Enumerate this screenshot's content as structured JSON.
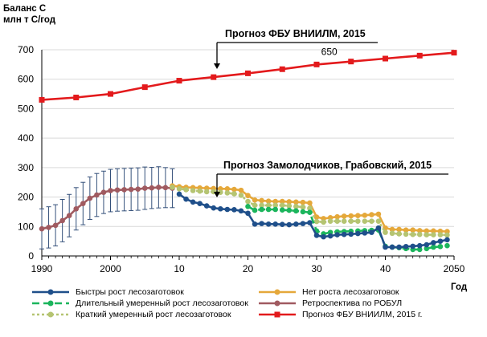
{
  "chart_data": {
    "type": "line",
    "ylabel_line1": "Баланс С",
    "ylabel_line2": "млн т С/год",
    "xlabel": "Год",
    "xlim": [
      1990,
      2050
    ],
    "ylim": [
      0,
      700
    ],
    "x_ticks": [
      "1990",
      "2000",
      "10",
      "20",
      "30",
      "40",
      "2050"
    ],
    "y_ticks": [
      "0",
      "100",
      "200",
      "300",
      "400",
      "500",
      "600",
      "700"
    ],
    "grid": "horizontal",
    "legend_position": "bottom",
    "annotations": [
      {
        "text": "Прогноз ФБУ ВНИИЛМ, 2015",
        "target": [
          2015,
          607
        ]
      },
      {
        "text": "Прогноз Замолодчиков, Грабовский, 2015",
        "target": [
          2015,
          118
        ]
      }
    ],
    "data_label": {
      "text": "650",
      "x": 2033,
      "y": 650
    },
    "series": [
      {
        "name": "Прогноз ФБУ ВНИИЛМ, 2015 г.",
        "color": "#e31a1c",
        "style": "solid",
        "marker": "square",
        "x": [
          1990,
          1995,
          2000,
          2005,
          2010,
          2015,
          2020,
          2025,
          2030,
          2035,
          2040,
          2045,
          2050
        ],
        "y": [
          530,
          538,
          550,
          573,
          595,
          607,
          620,
          634,
          650,
          660,
          670,
          680,
          690
        ]
      },
      {
        "name": "Ретроспектива по РОБУЛ",
        "color": "#a05a60",
        "style": "solid",
        "marker": "circle",
        "x": [
          1990,
          1991,
          1992,
          1993,
          1994,
          1995,
          1996,
          1997,
          1998,
          1999,
          2000,
          2001,
          2002,
          2003,
          2004,
          2005,
          2006,
          2007,
          2008,
          2009
        ],
        "y": [
          92,
          97,
          104,
          120,
          137,
          160,
          178,
          196,
          207,
          216,
          222,
          224,
          225,
          226,
          227,
          230,
          231,
          233,
          232,
          230
        ],
        "error": [
          68,
          70,
          70,
          72,
          72,
          72,
          72,
          72,
          73,
          72,
          72,
          72,
          72,
          72,
          72,
          72,
          70,
          70,
          68,
          66
        ]
      },
      {
        "name": "Нет роста лесозаготовок",
        "color": "#e5a83a",
        "style": "solid",
        "marker": "circle",
        "x": [
          2009,
          2010,
          2011,
          2012,
          2013,
          2014,
          2015,
          2016,
          2017,
          2018,
          2019,
          2020,
          2021,
          2022,
          2023,
          2024,
          2025,
          2026,
          2027,
          2028,
          2029,
          2030,
          2031,
          2032,
          2033,
          2034,
          2035,
          2036,
          2037,
          2038,
          2039,
          2040,
          2041,
          2042,
          2043,
          2044,
          2045,
          2046,
          2047,
          2048,
          2049
        ],
        "y": [
          238,
          235,
          233,
          232,
          231,
          230,
          229,
          228,
          228,
          226,
          223,
          205,
          190,
          188,
          186,
          185,
          185,
          184,
          183,
          182,
          180,
          132,
          127,
          130,
          133,
          135,
          136,
          137,
          138,
          140,
          142,
          95,
          90,
          90,
          88,
          88,
          86,
          85,
          85,
          84,
          83
        ]
      },
      {
        "name": "Краткий умеренный рост лесозаготовок",
        "color": "#b5c472",
        "style": "dotted",
        "marker": "circle",
        "x": [
          2009,
          2010,
          2011,
          2012,
          2013,
          2014,
          2015,
          2016,
          2017,
          2018,
          2019,
          2020,
          2021,
          2022,
          2023,
          2024,
          2025,
          2026,
          2027,
          2028,
          2029,
          2030,
          2031,
          2032,
          2033,
          2034,
          2035,
          2036,
          2037,
          2038,
          2039,
          2040,
          2041,
          2042,
          2043,
          2044,
          2045,
          2046,
          2047,
          2048,
          2049
        ],
        "y": [
          233,
          228,
          225,
          222,
          220,
          218,
          218,
          216,
          214,
          211,
          206,
          185,
          172,
          172,
          172,
          172,
          172,
          170,
          168,
          166,
          162,
          117,
          115,
          118,
          118,
          118,
          118,
          118,
          118,
          118,
          118,
          80,
          77,
          75,
          74,
          73,
          73,
          72,
          72,
          72,
          71
        ]
      },
      {
        "name": "Длительный умеренный рост лесозаготовок",
        "color": "#1bb55c",
        "style": "dashed",
        "marker": "circle",
        "x": [
          2020,
          2021,
          2022,
          2023,
          2024,
          2025,
          2026,
          2027,
          2028,
          2029,
          2030,
          2031,
          2032,
          2033,
          2034,
          2035,
          2036,
          2037,
          2038,
          2039,
          2040,
          2041,
          2042,
          2043,
          2044,
          2045,
          2046,
          2047,
          2048,
          2049
        ],
        "y": [
          168,
          155,
          158,
          158,
          158,
          156,
          155,
          153,
          150,
          148,
          85,
          75,
          80,
          82,
          83,
          84,
          85,
          86,
          87,
          88,
          33,
          30,
          28,
          25,
          22,
          22,
          25,
          30,
          32,
          35
        ]
      },
      {
        "name": "Быстры рост лесозаготовок",
        "color": "#1f4f8a",
        "style": "solid",
        "marker": "circle",
        "x": [
          2010,
          2011,
          2012,
          2013,
          2014,
          2015,
          2016,
          2017,
          2018,
          2019,
          2020,
          2021,
          2022,
          2023,
          2024,
          2025,
          2026,
          2027,
          2028,
          2029,
          2030,
          2031,
          2032,
          2033,
          2034,
          2035,
          2036,
          2037,
          2038,
          2039,
          2040,
          2041,
          2042,
          2043,
          2044,
          2045,
          2046,
          2047,
          2048,
          2049
        ],
        "y": [
          210,
          193,
          183,
          178,
          170,
          163,
          160,
          158,
          157,
          153,
          145,
          108,
          110,
          108,
          108,
          107,
          106,
          108,
          110,
          113,
          70,
          65,
          68,
          72,
          73,
          74,
          76,
          78,
          80,
          95,
          30,
          30,
          30,
          32,
          33,
          35,
          38,
          45,
          50,
          55
        ]
      }
    ],
    "legend": [
      {
        "label": "Быстры рост лесозаготовок",
        "series": "Быстры рост лесозаготовок"
      },
      {
        "label": "Длительный умеренный рост лесозаготовок",
        "series": "Длительный умеренный рост лесозаготовок"
      },
      {
        "label": "Краткий умеренный рост лесозаготовок",
        "series": "Краткий умеренный рост лесозаготовок"
      },
      {
        "label": "Нет роста лесозаготовок",
        "series": "Нет роста лесозаготовок"
      },
      {
        "label": "Ретроспектива по РОБУЛ",
        "series": "Ретроспектива по РОБУЛ"
      },
      {
        "label": "Прогноз ФБУ ВНИИЛМ, 2015 г.",
        "series": "Прогноз ФБУ ВНИИЛМ, 2015 г."
      }
    ],
    "axis_color": "#000000",
    "grid_color": "#d9d9d9"
  }
}
